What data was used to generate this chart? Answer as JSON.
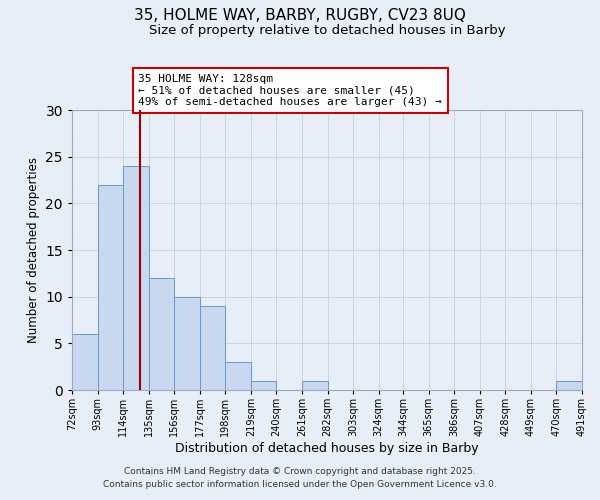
{
  "title": "35, HOLME WAY, BARBY, RUGBY, CV23 8UQ",
  "subtitle": "Size of property relative to detached houses in Barby",
  "xlabel": "Distribution of detached houses by size in Barby",
  "ylabel": "Number of detached properties",
  "bar_color": "#c8d9ef",
  "bar_edge_color": "#6699cc",
  "background_color": "#e8eef8",
  "bins": [
    72,
    93,
    114,
    135,
    156,
    177,
    198,
    219,
    240,
    261,
    282,
    303,
    324,
    344,
    365,
    386,
    407,
    428,
    449,
    470,
    491
  ],
  "counts": [
    6,
    22,
    24,
    12,
    10,
    9,
    3,
    1,
    0,
    1,
    0,
    0,
    0,
    0,
    0,
    0,
    0,
    0,
    0,
    1
  ],
  "tick_labels": [
    "72sqm",
    "93sqm",
    "114sqm",
    "135sqm",
    "156sqm",
    "177sqm",
    "198sqm",
    "219sqm",
    "240sqm",
    "261sqm",
    "282sqm",
    "303sqm",
    "324sqm",
    "344sqm",
    "365sqm",
    "386sqm",
    "407sqm",
    "428sqm",
    "449sqm",
    "470sqm",
    "491sqm"
  ],
  "vline_x": 128,
  "vline_color": "#990000",
  "annotation_text": "35 HOLME WAY: 128sqm\n← 51% of detached houses are smaller (45)\n49% of semi-detached houses are larger (43) →",
  "annotation_box_color": "#ffffff",
  "annotation_box_edge": "#cc0000",
  "ylim": [
    0,
    30
  ],
  "yticks": [
    0,
    5,
    10,
    15,
    20,
    25,
    30
  ],
  "footer1": "Contains HM Land Registry data © Crown copyright and database right 2025.",
  "footer2": "Contains public sector information licensed under the Open Government Licence v3.0."
}
